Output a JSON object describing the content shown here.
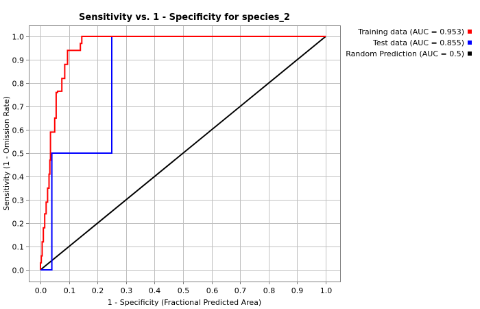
{
  "chart_data": {
    "type": "line",
    "title": "Sensitivity vs. 1 - Specificity for species_2",
    "xlabel": "1 - Specificity  (Fractional Predicted Area)",
    "ylabel": "Sensitivity  (1 - Omission Rate)",
    "xlim": [
      0,
      1
    ],
    "ylim": [
      0,
      1
    ],
    "x_ticks": [
      "0.0",
      "0.1",
      "0.2",
      "0.3",
      "0.4",
      "0.5",
      "0.6",
      "0.7",
      "0.8",
      "0.9",
      "1.0"
    ],
    "y_ticks": [
      "0.0",
      "0.1",
      "0.2",
      "0.3",
      "0.4",
      "0.5",
      "0.6",
      "0.7",
      "0.8",
      "0.9",
      "1.0"
    ],
    "grid": true,
    "legend_position": "outside-top-right",
    "series": [
      {
        "name": "Training data (AUC = 0.953)",
        "color": "#ff0000",
        "x": [
          0.0,
          0.0,
          0.003,
          0.003,
          0.006,
          0.006,
          0.01,
          0.01,
          0.015,
          0.015,
          0.02,
          0.02,
          0.025,
          0.025,
          0.03,
          0.03,
          0.033,
          0.033,
          0.035,
          0.035,
          0.04,
          0.04,
          0.05,
          0.05,
          0.055,
          0.055,
          0.06,
          0.06,
          0.075,
          0.075,
          0.085,
          0.085,
          0.095,
          0.095,
          0.1,
          0.1,
          0.14,
          0.14,
          0.145,
          0.145,
          1.0
        ],
        "y": [
          0.0,
          0.03,
          0.03,
          0.06,
          0.06,
          0.12,
          0.12,
          0.18,
          0.18,
          0.24,
          0.24,
          0.29,
          0.29,
          0.35,
          0.35,
          0.41,
          0.41,
          0.47,
          0.47,
          0.59,
          0.59,
          0.59,
          0.59,
          0.65,
          0.65,
          0.76,
          0.76,
          0.765,
          0.765,
          0.82,
          0.82,
          0.88,
          0.88,
          0.94,
          0.94,
          0.94,
          0.94,
          0.97,
          0.97,
          1.0,
          1.0
        ]
      },
      {
        "name": "Test data (AUC = 0.855)",
        "color": "#0000ff",
        "x": [
          0.0,
          0.04,
          0.04,
          0.25,
          0.25,
          1.0
        ],
        "y": [
          0.0,
          0.0,
          0.5,
          0.5,
          1.0,
          1.0
        ]
      },
      {
        "name": "Random Prediction (AUC = 0.5)",
        "color": "#000000",
        "x": [
          0.0,
          1.0
        ],
        "y": [
          0.0,
          1.0
        ]
      }
    ]
  }
}
